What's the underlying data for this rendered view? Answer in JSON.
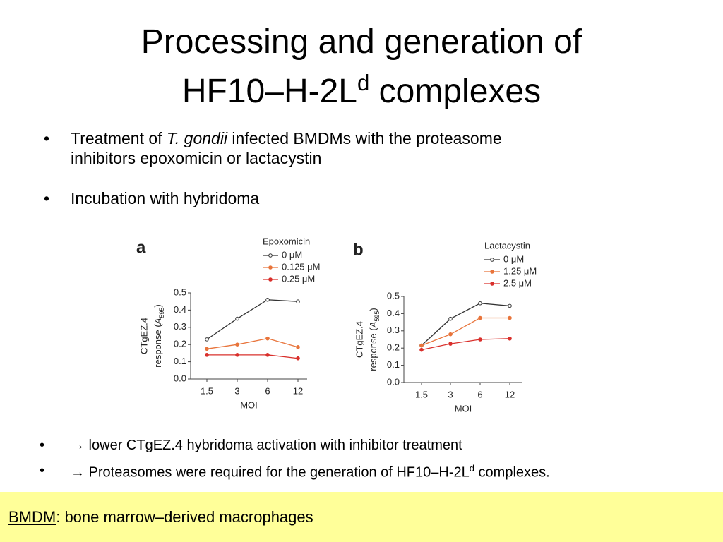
{
  "title": {
    "line1": "Processing and generation of",
    "line2": "HF10–H-2L",
    "line2_sup": "d",
    "line2_end": " complexes"
  },
  "bullets": [
    {
      "parts": [
        "Treatment of ",
        "T. gondii",
        " infected BMDMs with the proteasome",
        "inhibitors epoxomicin or lactacystin"
      ]
    },
    {
      "text": "Incubation with hybridoma"
    }
  ],
  "conclusions": [
    {
      "arrow": "→",
      "text": " lower CTgEZ.4 hybridoma activation with inhibitor treatment"
    },
    {
      "arrow": "→",
      "text": " Proteasomes were required for the generation of HF10–H-2L",
      "sup": "d",
      "end": " complexes."
    }
  ],
  "footer": {
    "term": "BMDM",
    "definition": ": bone marrow–derived macrophages"
  },
  "chart_data": [
    {
      "type": "line",
      "panel": "a",
      "legend_title": "Epoxomicin",
      "categories": [
        "1.5",
        "3",
        "6",
        "12"
      ],
      "xlabel": "MOI",
      "ylabel_line1": "CTgEZ.4",
      "ylabel_line2": [
        "response (",
        "A",
        "595",
        ")"
      ],
      "ylim": [
        0,
        0.5
      ],
      "yticks": [
        {
          "value": 0,
          "label": "0.0"
        },
        0.1,
        0.2,
        0.3,
        0.4,
        0.5
      ],
      "series": [
        {
          "name": "0 μM",
          "color": "#333333",
          "values": [
            0.23,
            0.35,
            0.46,
            0.45
          ]
        },
        {
          "name": "0.125 μM",
          "color": "#e8743b",
          "values": [
            0.175,
            0.2,
            0.235,
            0.185
          ]
        },
        {
          "name": "0.25 μM",
          "color": "#d9302c",
          "values": [
            0.14,
            0.14,
            0.14,
            0.12
          ]
        }
      ]
    },
    {
      "type": "line",
      "panel": "b",
      "legend_title": "Lactacystin",
      "categories": [
        "1.5",
        "3",
        "6",
        "12"
      ],
      "xlabel": "MOI",
      "ylabel_line1": "CTgEZ.4",
      "ylabel_line2": [
        "response (",
        "A",
        "595",
        ")"
      ],
      "ylim": [
        0,
        0.5
      ],
      "yticks": [
        {
          "value": 0,
          "label": "0.0"
        },
        0.1,
        0.2,
        0.3,
        0.4,
        0.5
      ],
      "series": [
        {
          "name": "0 μM",
          "color": "#333333",
          "values": [
            0.215,
            0.37,
            0.46,
            0.445
          ]
        },
        {
          "name": "1.25 μM",
          "color": "#e8743b",
          "values": [
            0.215,
            0.28,
            0.375,
            0.375
          ]
        },
        {
          "name": "2.5 μM",
          "color": "#d9302c",
          "values": [
            0.19,
            0.225,
            0.25,
            0.255
          ]
        }
      ]
    }
  ]
}
